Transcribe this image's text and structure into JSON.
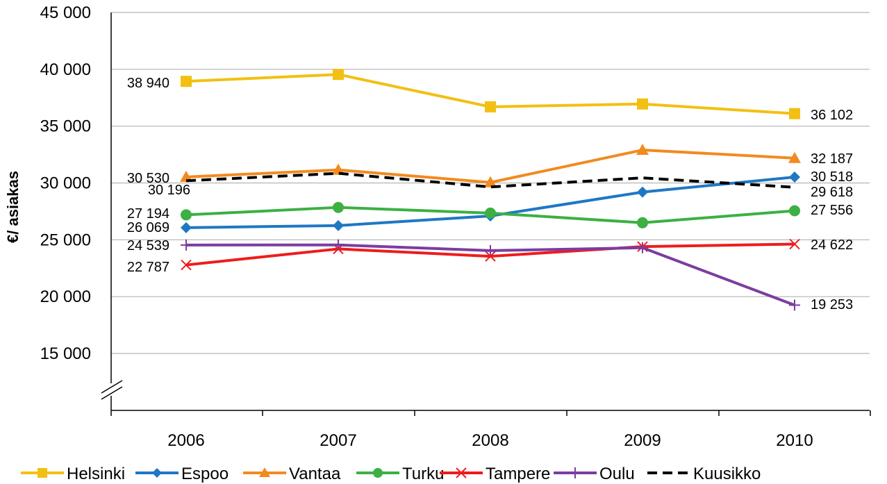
{
  "chart_data": {
    "type": "line",
    "title": "",
    "xlabel": "",
    "ylabel": "€/ asiakas",
    "x": [
      "2006",
      "2007",
      "2008",
      "2009",
      "2010"
    ],
    "ylim": [
      15000,
      45000
    ],
    "yticks": [
      "15 000",
      "20 000",
      "25 000",
      "30 000",
      "35 000",
      "40 000",
      "45 000"
    ],
    "axis_break": true,
    "grid": true,
    "legend_position": "bottom",
    "series": [
      {
        "name": "Helsinki",
        "color": "#F2C012",
        "marker": "square",
        "dashed": false,
        "values": [
          38940,
          39550,
          36700,
          36950,
          36102
        ]
      },
      {
        "name": "Espoo",
        "color": "#1F77C4",
        "marker": "diamond",
        "dashed": false,
        "values": [
          26069,
          26250,
          27100,
          29200,
          30518
        ]
      },
      {
        "name": "Vantaa",
        "color": "#F28A1F",
        "marker": "triangle",
        "dashed": false,
        "values": [
          30530,
          31150,
          30050,
          32900,
          32187
        ]
      },
      {
        "name": "Turku",
        "color": "#3CB043",
        "marker": "circle",
        "dashed": false,
        "values": [
          27194,
          27850,
          27350,
          26500,
          27556
        ]
      },
      {
        "name": "Tampere",
        "color": "#EE1C1C",
        "marker": "x",
        "dashed": false,
        "values": [
          22787,
          24200,
          23550,
          24400,
          24622
        ]
      },
      {
        "name": "Oulu",
        "color": "#7B3DA0",
        "marker": "plus",
        "dashed": false,
        "values": [
          24539,
          24550,
          24050,
          24300,
          19253
        ]
      },
      {
        "name": "Kuusikko",
        "color": "#000000",
        "marker": "none",
        "dashed": true,
        "values": [
          30196,
          30850,
          29650,
          30450,
          29618
        ]
      }
    ],
    "data_labels": [
      {
        "series": "Helsinki",
        "year": "2006",
        "text": "38 940"
      },
      {
        "series": "Helsinki",
        "year": "2010",
        "text": "36 102"
      },
      {
        "series": "Vantaa",
        "year": "2006",
        "text": "30 530"
      },
      {
        "series": "Vantaa",
        "year": "2010",
        "text": "32 187"
      },
      {
        "series": "Kuusikko",
        "year": "2006",
        "text": "30 196"
      },
      {
        "series": "Espoo",
        "year": "2010",
        "text": "30 518"
      },
      {
        "series": "Kuusikko",
        "year": "2010",
        "text": "29 618"
      },
      {
        "series": "Turku",
        "year": "2006",
        "text": "27 194"
      },
      {
        "series": "Turku",
        "year": "2010",
        "text": "27 556"
      },
      {
        "series": "Espoo",
        "year": "2006",
        "text": "26 069"
      },
      {
        "series": "Oulu",
        "year": "2006",
        "text": "24 539"
      },
      {
        "series": "Tampere",
        "year": "2010",
        "text": "24 622"
      },
      {
        "series": "Tampere",
        "year": "2006",
        "text": "22 787"
      },
      {
        "series": "Oulu",
        "year": "2010",
        "text": "19 253"
      }
    ]
  }
}
